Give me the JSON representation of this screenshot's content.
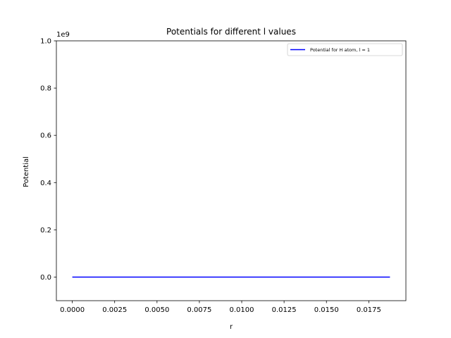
{
  "chart_data": {
    "type": "line",
    "title": "Potentials for different l values",
    "xlabel": "r",
    "ylabel": "Potential",
    "y_offset_label": "1e9",
    "xlim": [
      -0.00094,
      0.01969
    ],
    "ylim": [
      -100000000,
      1000000000
    ],
    "xticks": [
      0.0,
      0.0025,
      0.005,
      0.0075,
      0.01,
      0.0125,
      0.015,
      0.0175
    ],
    "xtick_labels": [
      "0.0000",
      "0.0025",
      "0.0050",
      "0.0075",
      "0.0100",
      "0.0125",
      "0.0150",
      "0.0175"
    ],
    "yticks": [
      0,
      200000000,
      400000000,
      600000000,
      800000000,
      1000000000
    ],
    "ytick_labels": [
      "0.0",
      "0.2",
      "0.4",
      "0.6",
      "0.8",
      "1.0"
    ],
    "grid": false,
    "legend_position": "upper right",
    "series": [
      {
        "name": "Potential for H atom, l = 1",
        "color": "#0000ff",
        "x": [
          0.0,
          0.0025,
          0.005,
          0.0075,
          0.01,
          0.0125,
          0.015,
          0.0175,
          0.01875
        ],
        "y": [
          0,
          0,
          0,
          0,
          0,
          0,
          0,
          0,
          0
        ]
      }
    ]
  }
}
